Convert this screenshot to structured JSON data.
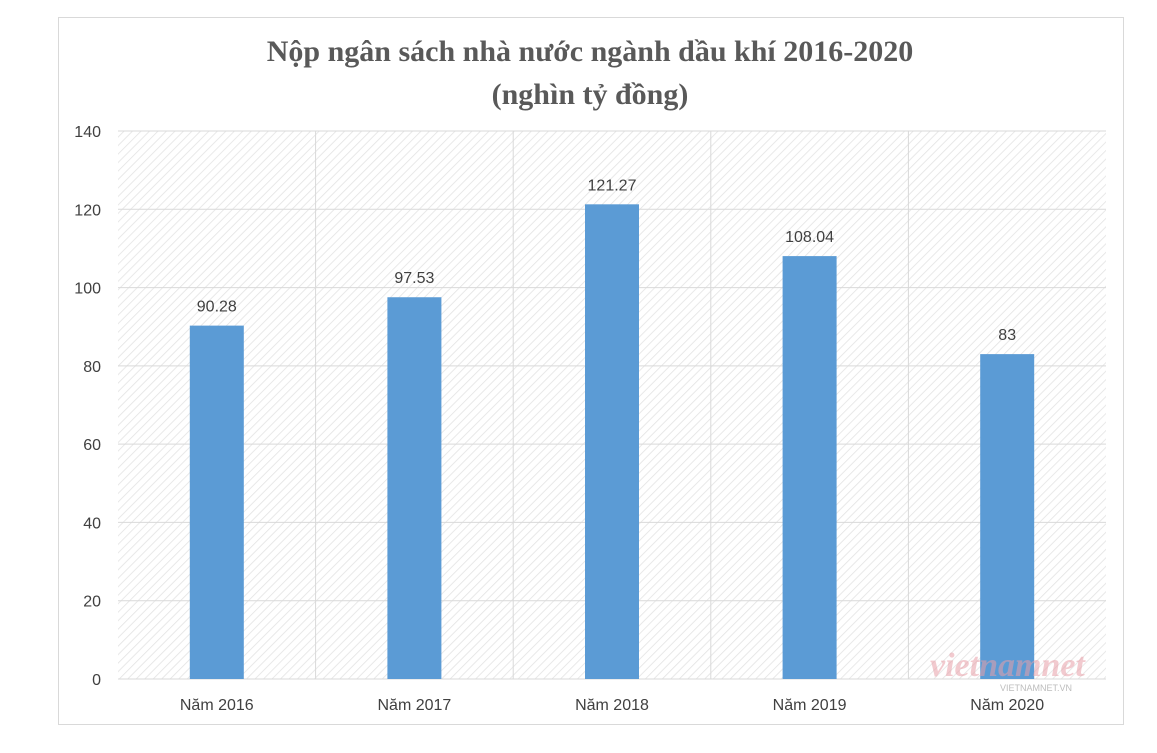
{
  "chart_data": {
    "type": "bar",
    "title": "Nộp ngân sách nhà nước ngành dầu khí  2016-2020",
    "subtitle": "(nghìn tỷ đồng)",
    "categories": [
      "Năm 2016",
      "Năm 2017",
      "Năm 2018",
      "Năm 2019",
      "Năm 2020"
    ],
    "values": [
      90.28,
      97.53,
      121.27,
      108.04,
      83
    ],
    "data_labels": [
      "90.28",
      "97.53",
      "121.27",
      "108.04",
      "83"
    ],
    "yticks": [
      "0",
      "20",
      "40",
      "60",
      "80",
      "100",
      "120",
      "140"
    ],
    "ylim": [
      0,
      140
    ],
    "grid": true,
    "legend": "none",
    "bar_color": "#5b9bd5"
  },
  "watermark": {
    "text": "vietnamnet",
    "subtext": "VIETNAMNET.VN"
  }
}
